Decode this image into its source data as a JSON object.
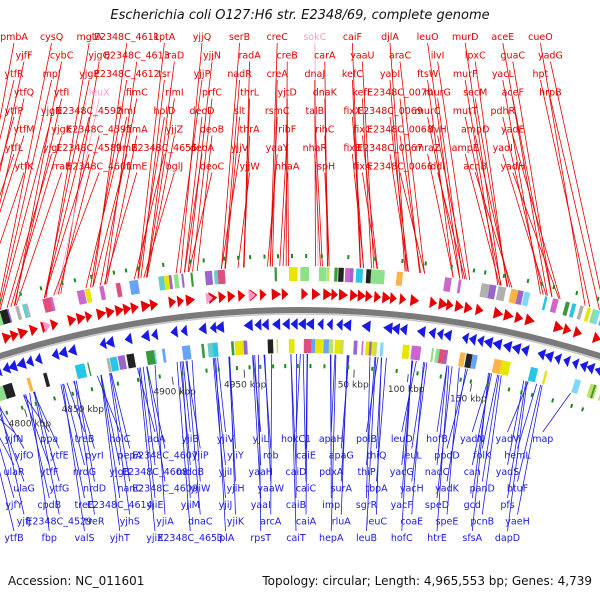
{
  "title": "Escherichia coli O127:H6 str. E2348/69, complete genome",
  "footer": {
    "accession": "Accession: NC_011601",
    "topology": "Topology: circular; Length: 4,965,553 bp; Genes: 4,739"
  },
  "colors": {
    "forward": "#e60000",
    "reverse": "#1a1ae6",
    "highlight": "#ff99cc",
    "backbone": "#7a7a7a",
    "tick": "#1a8a1a",
    "text": "#111111"
  },
  "scale_labels": [
    "4800 kbp",
    "4850 kbp",
    "4900 kbp",
    "4950 kbp",
    "50 kbp",
    "100 kbp",
    "150 kbp"
  ],
  "top_labels": [
    "pmbA",
    "yjfF",
    "ytfR",
    "ytfQ",
    "ytfP",
    "ytfM",
    "ytfL",
    "ytfK",
    "cysQ",
    "cybC",
    "mpl",
    "ytfI",
    "yjgN",
    "yjgK",
    "yjgI",
    "rraB",
    "mgtA",
    "yjgQ",
    "yjgP",
    "leuX",
    "E2348C_4592",
    "E2348C_4591",
    "E2348C_4589",
    "E2348C_4601",
    "E2348C_4611",
    "E2348C_4613",
    "E2348C_4612",
    "fimC",
    "fimI",
    "fimA",
    "fimB",
    "fimE",
    "kptA",
    "iraD",
    "tsr",
    "rimI",
    "holD",
    "yjjZ",
    "E2348C_4655",
    "bglJ",
    "yjjQ",
    "yjjN",
    "yjjP",
    "prfC",
    "deoD",
    "deoB",
    "deoA",
    "deoC",
    "serB",
    "radA",
    "nadR",
    "thrL",
    "slt",
    "thrA",
    "yjjV",
    "yjjW",
    "creC",
    "creB",
    "creA",
    "yjtD",
    "rsmC",
    "ribF",
    "yaaY",
    "nhaA",
    "sokC",
    "carA",
    "dnaJ",
    "dnaK",
    "talB",
    "rihC",
    "nhaR",
    "ispH",
    "caiF",
    "yaaU",
    "kefC",
    "kefF",
    "fixX",
    "fixC",
    "fixB",
    "fixA",
    "djlA",
    "araC",
    "yabI",
    "E2348C_0070",
    "E2348C_0069",
    "E2348C_0068",
    "E2348C_0067",
    "E2348C_0066",
    "leuO",
    "ilvI",
    "ftsW",
    "murG",
    "murC",
    "ilvH",
    "mraZ",
    "ddl",
    "murD",
    "lpxC",
    "murF",
    "secM",
    "mutT",
    "ampD",
    "ampE",
    "acnB",
    "aceE",
    "guaC",
    "yacL",
    "aceF",
    "pdhR",
    "yadE",
    "yadI",
    "yadH",
    "cueO",
    "yadG",
    "hpt",
    "hrpB"
  ],
  "bottom_labels": [
    "yjfN",
    "yjfO",
    "ulaR",
    "ulaG",
    "yjfY",
    "yjfJ",
    "ytfB",
    "ppa",
    "ytfE",
    "ytfF",
    "ytfG",
    "cpdB",
    "E2348C_4529",
    "fbp",
    "treB",
    "pyrI",
    "nrdG",
    "nrdD",
    "treC",
    "treR",
    "valS",
    "holC",
    "pepA",
    "yjgB",
    "nanC",
    "E2348C_4614",
    "yjhS",
    "yjhT",
    "iadA",
    "E2348C_4607",
    "E2348C_4608",
    "E2348C_4609",
    "yjiE",
    "yjiA",
    "yjiX",
    "yjiB",
    "yjiP",
    "mdoB",
    "yjiW",
    "yjiM",
    "dnaC",
    "E2348C_4653",
    "yjiV",
    "yjiY",
    "yjiI",
    "yjiH",
    "yjiJ",
    "yjiK",
    "lplA",
    "yjiL",
    "rob",
    "yaaH",
    "yaaW",
    "yaaI",
    "arcA",
    "rpsT",
    "hokC1",
    "caiE",
    "caiD",
    "caiC",
    "caiB",
    "caiA",
    "caiT",
    "apaH",
    "apaG",
    "pdxA",
    "surA",
    "imp",
    "rluA",
    "hepA",
    "polB",
    "thiQ",
    "thiP",
    "tbpA",
    "sgrR",
    "leuC",
    "leuB",
    "leuD",
    "leuL",
    "yacG",
    "yacH",
    "yacF",
    "coaE",
    "hofC",
    "hofB",
    "ppdD",
    "nadC",
    "yadK",
    "speD",
    "speE",
    "htrE",
    "yadN",
    "folK",
    "can",
    "panD",
    "gcd",
    "pcnB",
    "sfsA",
    "yadV",
    "hemL",
    "yadS",
    "btuF",
    "pfs",
    "yaeH",
    "dapD",
    "map"
  ]
}
